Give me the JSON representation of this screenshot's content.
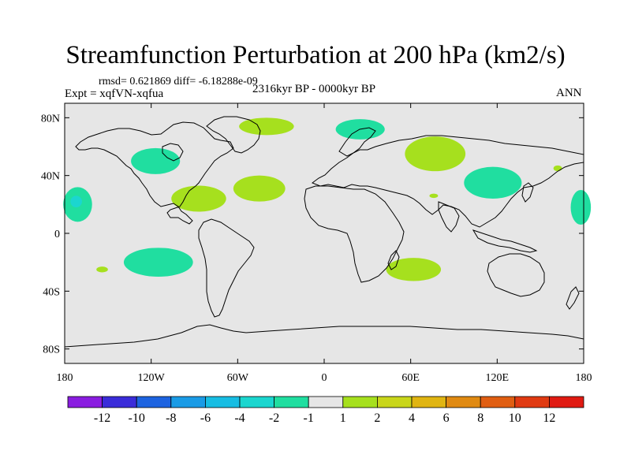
{
  "chart_data": {
    "type": "contour-map",
    "title": "Streamfunction Perturbation at 200 hPa (km2/s)",
    "stats_line": "rmsd= 0.621869 diff= -6.18288e-09",
    "experiment": "Expt = xqfVN-xqfua",
    "period": "2316kyr BP - 0000kyr BP",
    "season": "ANN",
    "projection": "cylindrical-equidistant",
    "xlim": [
      -180,
      180
    ],
    "ylim": [
      -90,
      90
    ],
    "x_ticks": [
      {
        "value": -180,
        "label": "180"
      },
      {
        "value": -120,
        "label": "120W"
      },
      {
        "value": -60,
        "label": "60W"
      },
      {
        "value": 0,
        "label": "0"
      },
      {
        "value": 60,
        "label": "60E"
      },
      {
        "value": 120,
        "label": "120E"
      },
      {
        "value": 180,
        "label": "180"
      }
    ],
    "y_ticks": [
      {
        "value": 80,
        "label": "80N"
      },
      {
        "value": 40,
        "label": "40N"
      },
      {
        "value": 0,
        "label": "0"
      },
      {
        "value": -40,
        "label": "40S"
      },
      {
        "value": -80,
        "label": "80S"
      }
    ],
    "colorbar": {
      "levels": [
        "-12",
        "-10",
        "-8",
        "-6",
        "-4",
        "-2",
        "-1",
        "1",
        "2",
        "4",
        "6",
        "8",
        "10",
        "12"
      ],
      "colors": [
        "#8a1de0",
        "#3a2cd9",
        "#1d63e0",
        "#1a9be6",
        "#17bde3",
        "#1bd6cf",
        "#20dea0",
        "#e6e6e6",
        "#a6e01e",
        "#c9d61a",
        "#e0b512",
        "#e08a12",
        "#e05e12",
        "#e03a12",
        "#e01a12"
      ]
    },
    "anomaly_regions": [
      {
        "name": "north-pacific-east",
        "lon": -171,
        "lat": 20,
        "rx": 10,
        "ry": 12,
        "bin": "-2 to -1"
      },
      {
        "name": "north-pacific-core",
        "lon": -172,
        "lat": 22,
        "rx": 4,
        "ry": 4,
        "bin": "-4 to -2"
      },
      {
        "name": "western-north-america",
        "lon": -117,
        "lat": 50,
        "rx": 17,
        "ry": 9,
        "bin": "-2 to -1"
      },
      {
        "name": "greenland",
        "lon": -40,
        "lat": 74,
        "rx": 19,
        "ry": 6,
        "bin": "1 to 2"
      },
      {
        "name": "scandinavia",
        "lon": 25,
        "lat": 72,
        "rx": 17,
        "ry": 7,
        "bin": "-2 to -1"
      },
      {
        "name": "west-siberia",
        "lon": 77,
        "lat": 55,
        "rx": 21,
        "ry": 12,
        "bin": "1 to 2"
      },
      {
        "name": "east-asia",
        "lon": 117,
        "lat": 35,
        "rx": 20,
        "ry": 11,
        "bin": "-2 to -1"
      },
      {
        "name": "tropical-atlantic-west",
        "lon": -87,
        "lat": 24,
        "rx": 19,
        "ry": 9,
        "bin": "1 to 2"
      },
      {
        "name": "tropical-atlantic-east",
        "lon": -45,
        "lat": 31,
        "rx": 18,
        "ry": 9,
        "bin": "1 to 2"
      },
      {
        "name": "central-pacific-east",
        "lon": 178,
        "lat": 18,
        "rx": 7,
        "ry": 12,
        "bin": "-2 to -1"
      },
      {
        "name": "south-pacific",
        "lon": -115,
        "lat": -20,
        "rx": 24,
        "ry": 10,
        "bin": "-2 to -1"
      },
      {
        "name": "south-pacific-small",
        "lon": -154,
        "lat": -25,
        "rx": 4,
        "ry": 2,
        "bin": "1 to 2"
      },
      {
        "name": "south-indian-ocean",
        "lon": 62,
        "lat": -25,
        "rx": 19,
        "ry": 8,
        "bin": "1 to 2"
      },
      {
        "name": "north-pacific-small",
        "lon": 162,
        "lat": 45,
        "rx": 3,
        "ry": 2,
        "bin": "1 to 2"
      },
      {
        "name": "arabian-small",
        "lon": 76,
        "lat": 26,
        "rx": 3,
        "ry": 1.5,
        "bin": "1 to 2"
      }
    ]
  }
}
